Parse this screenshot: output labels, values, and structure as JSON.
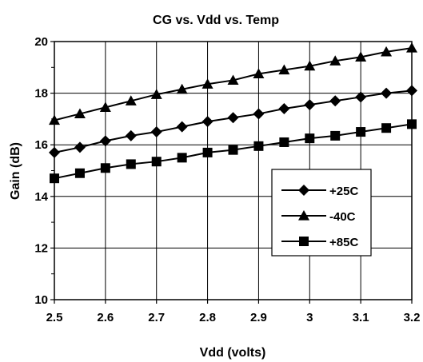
{
  "chart_data": {
    "type": "line",
    "title": "CG vs. Vdd vs. Temp",
    "xlabel": "Vdd (volts)",
    "ylabel": "Gain (dB)",
    "xlim": [
      2.5,
      3.2
    ],
    "ylim": [
      10,
      20
    ],
    "x_ticks": [
      "2.5",
      "2.6",
      "2.7",
      "2.8",
      "2.9",
      "3",
      "3.1",
      "3.2"
    ],
    "y_ticks": [
      "10",
      "12",
      "14",
      "16",
      "18",
      "20"
    ],
    "grid": true,
    "legend_position": "right-middle",
    "x": [
      2.5,
      2.55,
      2.6,
      2.65,
      2.7,
      2.75,
      2.8,
      2.85,
      2.9,
      2.95,
      3.0,
      3.05,
      3.1,
      3.15,
      3.2
    ],
    "series": [
      {
        "name": "+25C",
        "marker": "diamond",
        "values": [
          15.7,
          15.9,
          16.15,
          16.35,
          16.5,
          16.7,
          16.9,
          17.05,
          17.2,
          17.4,
          17.55,
          17.7,
          17.85,
          18.0,
          18.1
        ]
      },
      {
        "name": "-40C",
        "marker": "triangle",
        "values": [
          16.95,
          17.2,
          17.45,
          17.7,
          17.95,
          18.15,
          18.35,
          18.5,
          18.75,
          18.9,
          19.05,
          19.25,
          19.4,
          19.6,
          19.75
        ]
      },
      {
        "name": "+85C",
        "marker": "square",
        "values": [
          14.7,
          14.9,
          15.1,
          15.25,
          15.35,
          15.5,
          15.7,
          15.8,
          15.95,
          16.1,
          16.25,
          16.35,
          16.5,
          16.65,
          16.8
        ]
      }
    ]
  }
}
